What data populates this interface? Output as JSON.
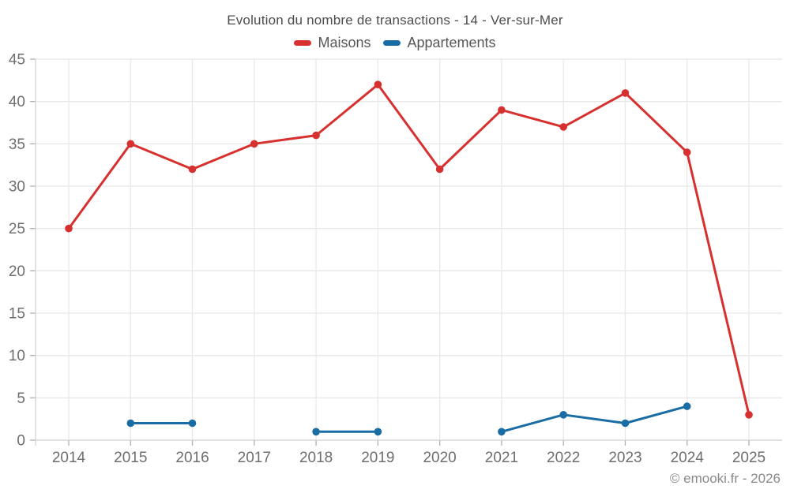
{
  "watermark": "© emooki.fr - 2026",
  "colors": {
    "maisons": "#d7312f",
    "appartements": "#1a6da4",
    "grid": "#e8e8e8",
    "axis": "#d4d4d4",
    "tick": "#b0b0b0",
    "tick_label": "#6e6e6e",
    "title_text": "#4c4c4c",
    "watermark_text": "#8a8a8a"
  },
  "chart_data": {
    "type": "line",
    "title": "Evolution du nombre de transactions - 14 - Ver-sur-Mer",
    "categories": [
      "2014",
      "2015",
      "2016",
      "2017",
      "2018",
      "2019",
      "2020",
      "2021",
      "2022",
      "2023",
      "2024",
      "2025"
    ],
    "series": [
      {
        "name": "Maisons",
        "color": "#d7312f",
        "values": [
          25,
          35,
          32,
          35,
          36,
          42,
          32,
          39,
          37,
          41,
          34,
          3
        ]
      },
      {
        "name": "Appartements",
        "color": "#1a6da4",
        "values": [
          null,
          2,
          2,
          null,
          1,
          1,
          null,
          1,
          3,
          2,
          4,
          null
        ]
      }
    ],
    "xlabel": "",
    "ylabel": "",
    "ylim": [
      0,
      45
    ],
    "ytick_step": 5,
    "grid": true,
    "legend_position": "top"
  }
}
